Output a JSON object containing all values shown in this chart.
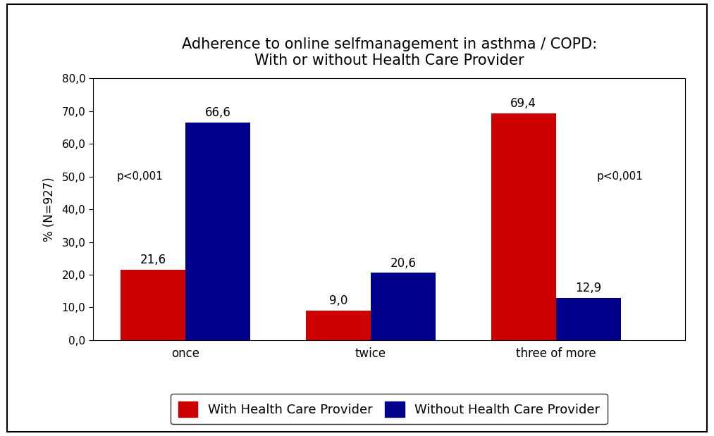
{
  "title_line1": "Adherence to online selfmanagement in asthma / COPD:",
  "title_line2": "With or without Health Care Provider",
  "categories": [
    "once",
    "twice",
    "three of more"
  ],
  "with_hcp": [
    21.6,
    9.0,
    69.4
  ],
  "without_hcp": [
    66.6,
    20.6,
    12.9
  ],
  "bar_color_with": "#cc0000",
  "bar_color_without": "#00008B",
  "ylabel": "% (N=927)",
  "ylim": [
    0,
    80
  ],
  "yticks": [
    0,
    10,
    20,
    30,
    40,
    50,
    60,
    70,
    80
  ],
  "ytick_labels": [
    "0,0",
    "10,0",
    "20,0",
    "30,0",
    "40,0",
    "50,0",
    "60,0",
    "70,0",
    "80,0"
  ],
  "p_value_left": "p<0,001",
  "p_value_right": "p<0,001",
  "legend_with": "With Health Care Provider",
  "legend_without": "Without Health Care Provider",
  "bar_width": 0.35,
  "group_positions": [
    1,
    2,
    3
  ],
  "background_color": "#ffffff",
  "title_fontsize": 15,
  "axis_fontsize": 12,
  "tick_fontsize": 11,
  "label_fontsize": 11,
  "value_label_fontsize": 12
}
